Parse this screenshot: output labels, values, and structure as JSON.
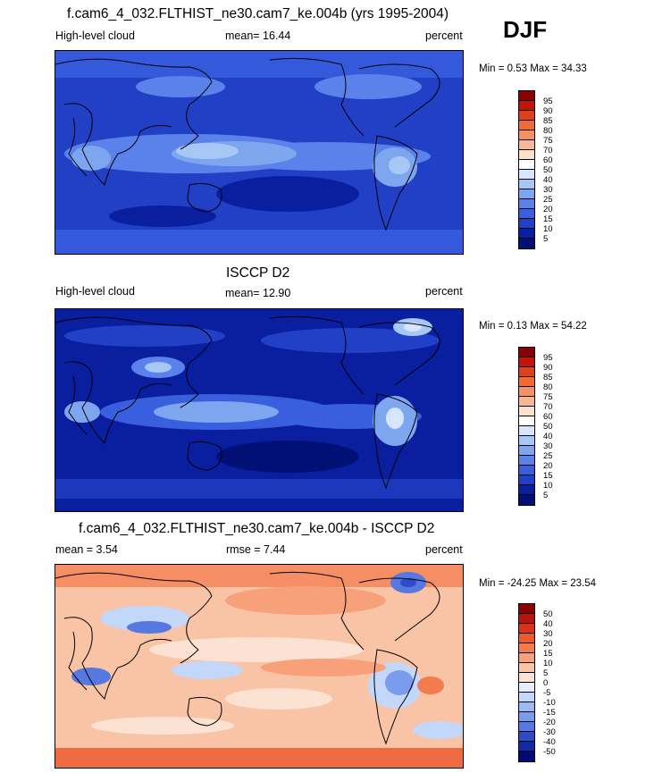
{
  "season": "DJF",
  "panels": [
    {
      "title": "f.cam6_4_032.FLTHIST_ne30.cam7_ke.004b (yrs 1995-2004)",
      "left_label": "High-level cloud",
      "center_label": "mean=  16.44",
      "right_label": "percent",
      "minmax": "Min =   0.53 Max =  34.33",
      "levels": [
        "95",
        "90",
        "85",
        "80",
        "75",
        "70",
        "60",
        "50",
        "40",
        "30",
        "25",
        "20",
        "15",
        "10",
        "5"
      ],
      "colors": [
        "#8b0000",
        "#c0150a",
        "#e0401a",
        "#f06a33",
        "#f49266",
        "#f8b894",
        "#fbe0cc",
        "#ffffff",
        "#d6e6ff",
        "#a7c7f7",
        "#7ea6ee",
        "#5a82ea",
        "#3a5fde",
        "#2140c6",
        "#0a1ea0",
        "#001075"
      ]
    },
    {
      "title": "ISCCP D2",
      "left_label": "High-level cloud",
      "center_label": "mean=  12.90",
      "right_label": "percent",
      "minmax": "Min =   0.13 Max =  54.22",
      "levels": [
        "95",
        "90",
        "85",
        "80",
        "75",
        "70",
        "60",
        "50",
        "40",
        "30",
        "25",
        "20",
        "15",
        "10",
        "5"
      ],
      "colors": [
        "#8b0000",
        "#c0150a",
        "#e0401a",
        "#f06a33",
        "#f49266",
        "#f8b894",
        "#fbe0cc",
        "#ffffff",
        "#d6e6ff",
        "#a7c7f7",
        "#7ea6ee",
        "#5a82ea",
        "#3a5fde",
        "#2140c6",
        "#0a1ea0",
        "#001075"
      ]
    },
    {
      "title": "f.cam6_4_032.FLTHIST_ne30.cam7_ke.004b - ISCCP D2",
      "left_label": "mean =   3.54",
      "center_label": "rmse =   7.44",
      "right_label": "percent",
      "minmax": "Min = -24.25 Max =  23.54",
      "levels": [
        "50",
        "40",
        "30",
        "20",
        "15",
        "10",
        "5",
        "0",
        "-5",
        "-10",
        "-15",
        "-20",
        "-30",
        "-40",
        "-50"
      ],
      "colors": [
        "#8b0000",
        "#b7140b",
        "#d9341a",
        "#ec5a2e",
        "#f37c4f",
        "#f7a07a",
        "#f9c3a6",
        "#fbe2d3",
        "#e3eeff",
        "#c3d7fa",
        "#9dbbf3",
        "#7a9cec",
        "#5579e0",
        "#2e4cc8",
        "#1428a3",
        "#000a78"
      ]
    }
  ]
}
